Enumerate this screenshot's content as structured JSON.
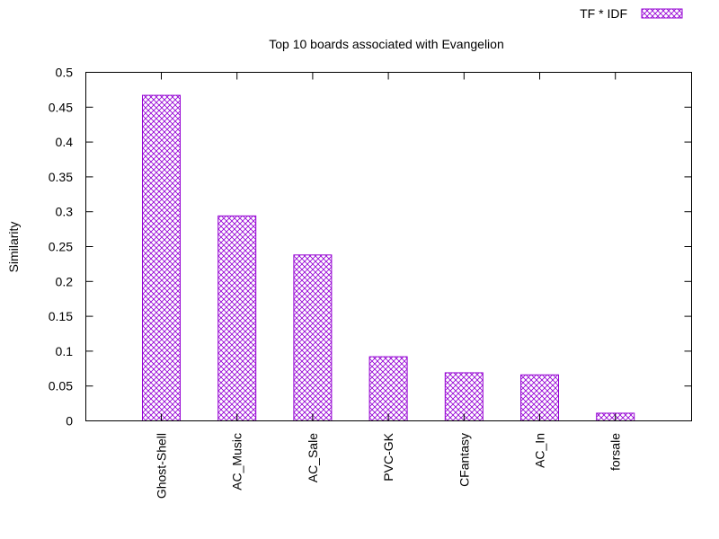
{
  "chart_data": {
    "type": "bar",
    "title": "Top 10 boards associated with Evangelion",
    "xlabel": "",
    "ylabel": "Similarity",
    "categories": [
      "Ghost-Shell",
      "AC_Music",
      "AC_Sale",
      "PVC-GK",
      "CFantasy",
      "AC_In",
      "forsale"
    ],
    "series": [
      {
        "name": "TF * IDF",
        "values": [
          0.467,
          0.294,
          0.238,
          0.092,
          0.069,
          0.066,
          0.011
        ]
      }
    ],
    "ylim": [
      0,
      0.5
    ],
    "yticks": [
      "0",
      "0.05",
      "0.1",
      "0.15",
      "0.2",
      "0.25",
      "0.3",
      "0.35",
      "0.4",
      "0.45",
      "0.5"
    ],
    "legend_position": "top-right",
    "grid": false,
    "fill_pattern": "crosshatch",
    "colors": {
      "bar": "#9400d3",
      "axis": "#000000"
    }
  }
}
